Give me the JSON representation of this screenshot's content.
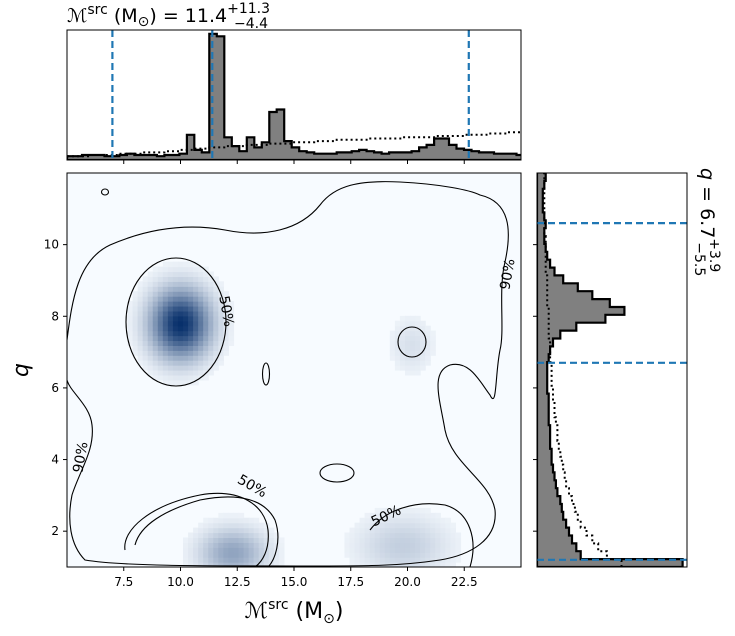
{
  "chart_data": {
    "type": "heatmap",
    "panels": [
      "joint",
      "marginal-x",
      "marginal-y"
    ],
    "top_title": {
      "base": "ℳ",
      "sup": "src",
      "unit": " (M",
      "unit_sub": "⊙",
      "unit_close": ") = ",
      "value": "11.4",
      "plus": "+11.3",
      "minus": "−4.4"
    },
    "right_title": {
      "base": "q = ",
      "value": "6.7",
      "plus": "+3.9",
      "minus": "−5.5"
    },
    "xlabel": {
      "base": "ℳ",
      "sup": "src",
      "unit": " (M",
      "unit_sub": "⊙",
      "unit_close": ")"
    },
    "ylabel": "q",
    "xlim": [
      5.0,
      25.0
    ],
    "ylim": [
      1.0,
      12.0
    ],
    "x_ticks": [
      7.5,
      10.0,
      12.5,
      15.0,
      17.5,
      20.0,
      22.5
    ],
    "x_tick_labels": [
      "7.5",
      "10.0",
      "12.5",
      "15.0",
      "17.5",
      "20.0",
      "22.5"
    ],
    "y_ticks": [
      2,
      4,
      6,
      8,
      10
    ],
    "y_tick_labels": [
      "2",
      "4",
      "6",
      "8",
      "10"
    ],
    "x_quantiles": [
      7.0,
      11.4,
      22.7
    ],
    "y_quantiles": [
      1.2,
      6.7,
      10.6
    ],
    "contour_labels": [
      "50%",
      "90%"
    ],
    "density_peaks": [
      {
        "x": 10.0,
        "y": 7.8,
        "weight": 1.0
      },
      {
        "x": 12.3,
        "y": 1.4,
        "weight": 0.35
      },
      {
        "x": 19.8,
        "y": 1.6,
        "weight": 0.15
      },
      {
        "x": 20.2,
        "y": 7.2,
        "weight": 0.08
      }
    ],
    "hist_x": {
      "bin_edges_start": 5.0,
      "bin_width": 0.33,
      "posterior": [
        0.03,
        0.03,
        0.04,
        0.04,
        0.04,
        0.03,
        0.03,
        0.04,
        0.05,
        0.04,
        0.04,
        0.04,
        0.03,
        0.04,
        0.04,
        0.05,
        0.2,
        0.08,
        0.06,
        1.0,
        0.98,
        0.18,
        0.11,
        0.07,
        0.18,
        0.1,
        0.14,
        0.38,
        0.4,
        0.15,
        0.1,
        0.07,
        0.06,
        0.05,
        0.05,
        0.05,
        0.06,
        0.06,
        0.07,
        0.08,
        0.07,
        0.06,
        0.05,
        0.06,
        0.06,
        0.06,
        0.07,
        0.1,
        0.12,
        0.17,
        0.17,
        0.12,
        0.09,
        0.08,
        0.07,
        0.06,
        0.06,
        0.05,
        0.05,
        0.05,
        0.04
      ],
      "prior": [
        0.03,
        0.03,
        0.03,
        0.04,
        0.04,
        0.04,
        0.04,
        0.05,
        0.05,
        0.05,
        0.06,
        0.06,
        0.06,
        0.07,
        0.07,
        0.08,
        0.08,
        0.09,
        0.09,
        0.1,
        0.1,
        0.11,
        0.11,
        0.11,
        0.12,
        0.12,
        0.12,
        0.13,
        0.13,
        0.13,
        0.14,
        0.14,
        0.14,
        0.15,
        0.15,
        0.15,
        0.16,
        0.16,
        0.16,
        0.16,
        0.17,
        0.17,
        0.17,
        0.17,
        0.17,
        0.18,
        0.18,
        0.18,
        0.18,
        0.19,
        0.19,
        0.19,
        0.19,
        0.2,
        0.2,
        0.2,
        0.21,
        0.21,
        0.21,
        0.22,
        0.22
      ]
    },
    "hist_y": {
      "bin_edges_start": 1.0,
      "bin_width": 0.22,
      "posterior": [
        1.0,
        0.3,
        0.27,
        0.24,
        0.22,
        0.2,
        0.18,
        0.17,
        0.16,
        0.14,
        0.13,
        0.12,
        0.11,
        0.1,
        0.1,
        0.09,
        0.09,
        0.09,
        0.08,
        0.08,
        0.08,
        0.08,
        0.07,
        0.07,
        0.07,
        0.07,
        0.08,
        0.09,
        0.11,
        0.16,
        0.27,
        0.47,
        0.6,
        0.5,
        0.38,
        0.28,
        0.18,
        0.12,
        0.09,
        0.07,
        0.06,
        0.05,
        0.05,
        0.06,
        0.05,
        0.04,
        0.04,
        0.04,
        0.05,
        0.06,
        0.05
      ],
      "prior": [
        0.58,
        0.48,
        0.42,
        0.38,
        0.34,
        0.3,
        0.28,
        0.26,
        0.24,
        0.22,
        0.2,
        0.19,
        0.18,
        0.17,
        0.16,
        0.15,
        0.14,
        0.14,
        0.13,
        0.12,
        0.12,
        0.11,
        0.11,
        0.1,
        0.1,
        0.1,
        0.09,
        0.09,
        0.09,
        0.08,
        0.08,
        0.08,
        0.08,
        0.07,
        0.07,
        0.07,
        0.07,
        0.06,
        0.06,
        0.06,
        0.06,
        0.06,
        0.05,
        0.05,
        0.05,
        0.05,
        0.05,
        0.05,
        0.05,
        0.05,
        0.05
      ]
    },
    "colors": {
      "density": "#08306b",
      "hist_fill": "#808080",
      "quantile": "#1f77b4",
      "contour": "#000000"
    }
  }
}
